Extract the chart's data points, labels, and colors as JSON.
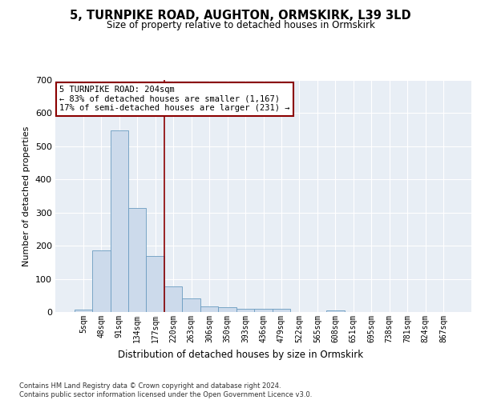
{
  "title": "5, TURNPIKE ROAD, AUGHTON, ORMSKIRK, L39 3LD",
  "subtitle": "Size of property relative to detached houses in Ormskirk",
  "xlabel": "Distribution of detached houses by size in Ormskirk",
  "ylabel": "Number of detached properties",
  "bar_color": "#ccdaeb",
  "bar_edge_color": "#6a9cc0",
  "categories": [
    "5sqm",
    "48sqm",
    "91sqm",
    "134sqm",
    "177sqm",
    "220sqm",
    "263sqm",
    "306sqm",
    "350sqm",
    "393sqm",
    "436sqm",
    "479sqm",
    "522sqm",
    "565sqm",
    "608sqm",
    "651sqm",
    "695sqm",
    "738sqm",
    "781sqm",
    "824sqm",
    "867sqm"
  ],
  "values": [
    8,
    187,
    548,
    315,
    168,
    78,
    40,
    16,
    15,
    10,
    10,
    10,
    0,
    0,
    5,
    0,
    0,
    0,
    0,
    0,
    0
  ],
  "vline_x": 4.5,
  "vline_color": "#8b0000",
  "annotation_text": "5 TURNPIKE ROAD: 204sqm\n← 83% of detached houses are smaller (1,167)\n17% of semi-detached houses are larger (231) →",
  "annotation_box_color": "#ffffff",
  "annotation_box_edge": "#8b0000",
  "ylim": [
    0,
    700
  ],
  "yticks": [
    0,
    100,
    200,
    300,
    400,
    500,
    600,
    700
  ],
  "footer": "Contains HM Land Registry data © Crown copyright and database right 2024.\nContains public sector information licensed under the Open Government Licence v3.0.",
  "bg_color": "#e8eef5",
  "plot_bg_color": "#e8eef5"
}
